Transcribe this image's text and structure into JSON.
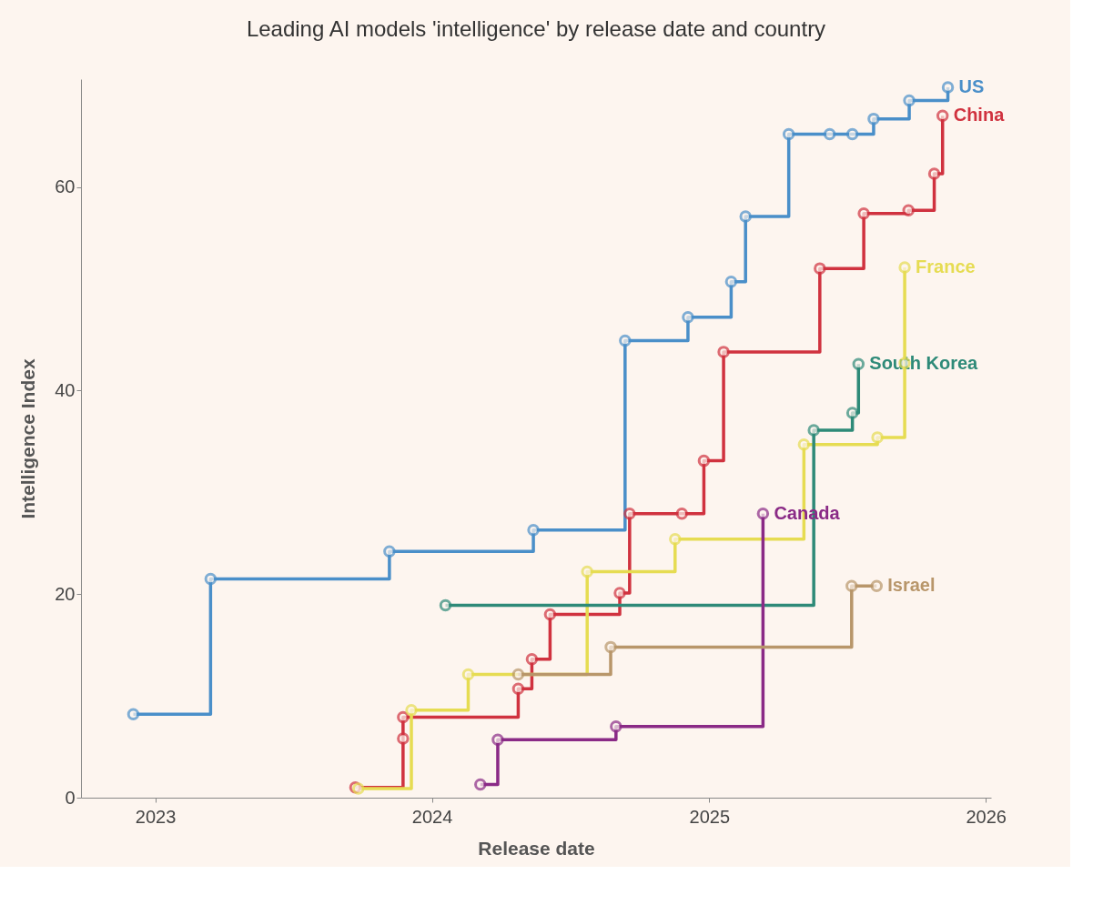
{
  "chart_data": {
    "type": "step",
    "title": "Leading AI models 'intelligence' by release date and country",
    "xlabel": "Release date",
    "ylabel": "Intelligence Index",
    "xlim": [
      "2022-09-25",
      "2026-01-08"
    ],
    "xticks": [
      "2023",
      "2024",
      "2025",
      "2026"
    ],
    "ylim": [
      0,
      70.6
    ],
    "yticks": [
      0,
      20,
      40,
      60
    ],
    "grid": false,
    "legend": false,
    "marker": "circle",
    "line_style": "solid",
    "series": [
      {
        "name": "US",
        "color": "#4a8fc9",
        "x": [
          "2022-12-03",
          "2023-03-15",
          "2023-11-06",
          "2024-05-14",
          "2024-09-12",
          "2024-12-04",
          "2025-01-30",
          "2025-02-18",
          "2025-04-16",
          "2025-06-09",
          "2025-07-09",
          "2025-08-06",
          "2025-09-22",
          "2025-11-12"
        ],
        "values": [
          8.2,
          21.5,
          24.2,
          26.3,
          44.9,
          47.2,
          50.7,
          57.1,
          65.2,
          65.2,
          65.2,
          66.7,
          68.5,
          69.8
        ]
      },
      {
        "name": "China",
        "color": "#d0323f",
        "x": [
          "2023-09-22",
          "2023-11-24",
          "2023-11-24",
          "2024-04-24",
          "2024-05-12",
          "2024-06-05",
          "2024-09-05",
          "2024-09-18",
          "2024-11-26",
          "2024-12-25",
          "2025-01-20",
          "2025-05-27",
          "2025-07-24",
          "2025-09-21",
          "2025-10-25",
          "2025-11-05"
        ],
        "values": [
          1.0,
          5.8,
          7.9,
          10.7,
          13.6,
          18.0,
          20.1,
          27.9,
          27.9,
          33.1,
          43.8,
          52.0,
          57.4,
          57.7,
          61.3,
          67.0
        ]
      },
      {
        "name": "France",
        "color": "#e6dc52",
        "x": [
          "2023-09-26",
          "2023-12-05",
          "2024-02-18",
          "2024-07-24",
          "2024-11-17",
          "2025-05-06",
          "2025-08-11",
          "2025-09-16",
          "2025-09-16"
        ],
        "values": [
          0.9,
          8.6,
          12.1,
          22.2,
          25.4,
          34.7,
          35.4,
          42.7,
          52.1
        ]
      },
      {
        "name": "South Korea",
        "color": "#2e8a78",
        "x": [
          "2024-01-19",
          "2025-05-19",
          "2025-07-09",
          "2025-07-17"
        ],
        "values": [
          18.9,
          36.1,
          37.8,
          42.6
        ]
      },
      {
        "name": "Canada",
        "color": "#8a2a86",
        "x": [
          "2024-03-05",
          "2024-03-28",
          "2024-08-31",
          "2025-03-13"
        ],
        "values": [
          1.3,
          5.7,
          7.0,
          27.9
        ]
      },
      {
        "name": "Israel",
        "color": "#b8966a",
        "x": [
          "2024-04-24",
          "2024-08-24",
          "2025-07-08",
          "2025-08-10"
        ],
        "values": [
          12.1,
          14.8,
          20.8,
          20.8
        ]
      }
    ]
  }
}
